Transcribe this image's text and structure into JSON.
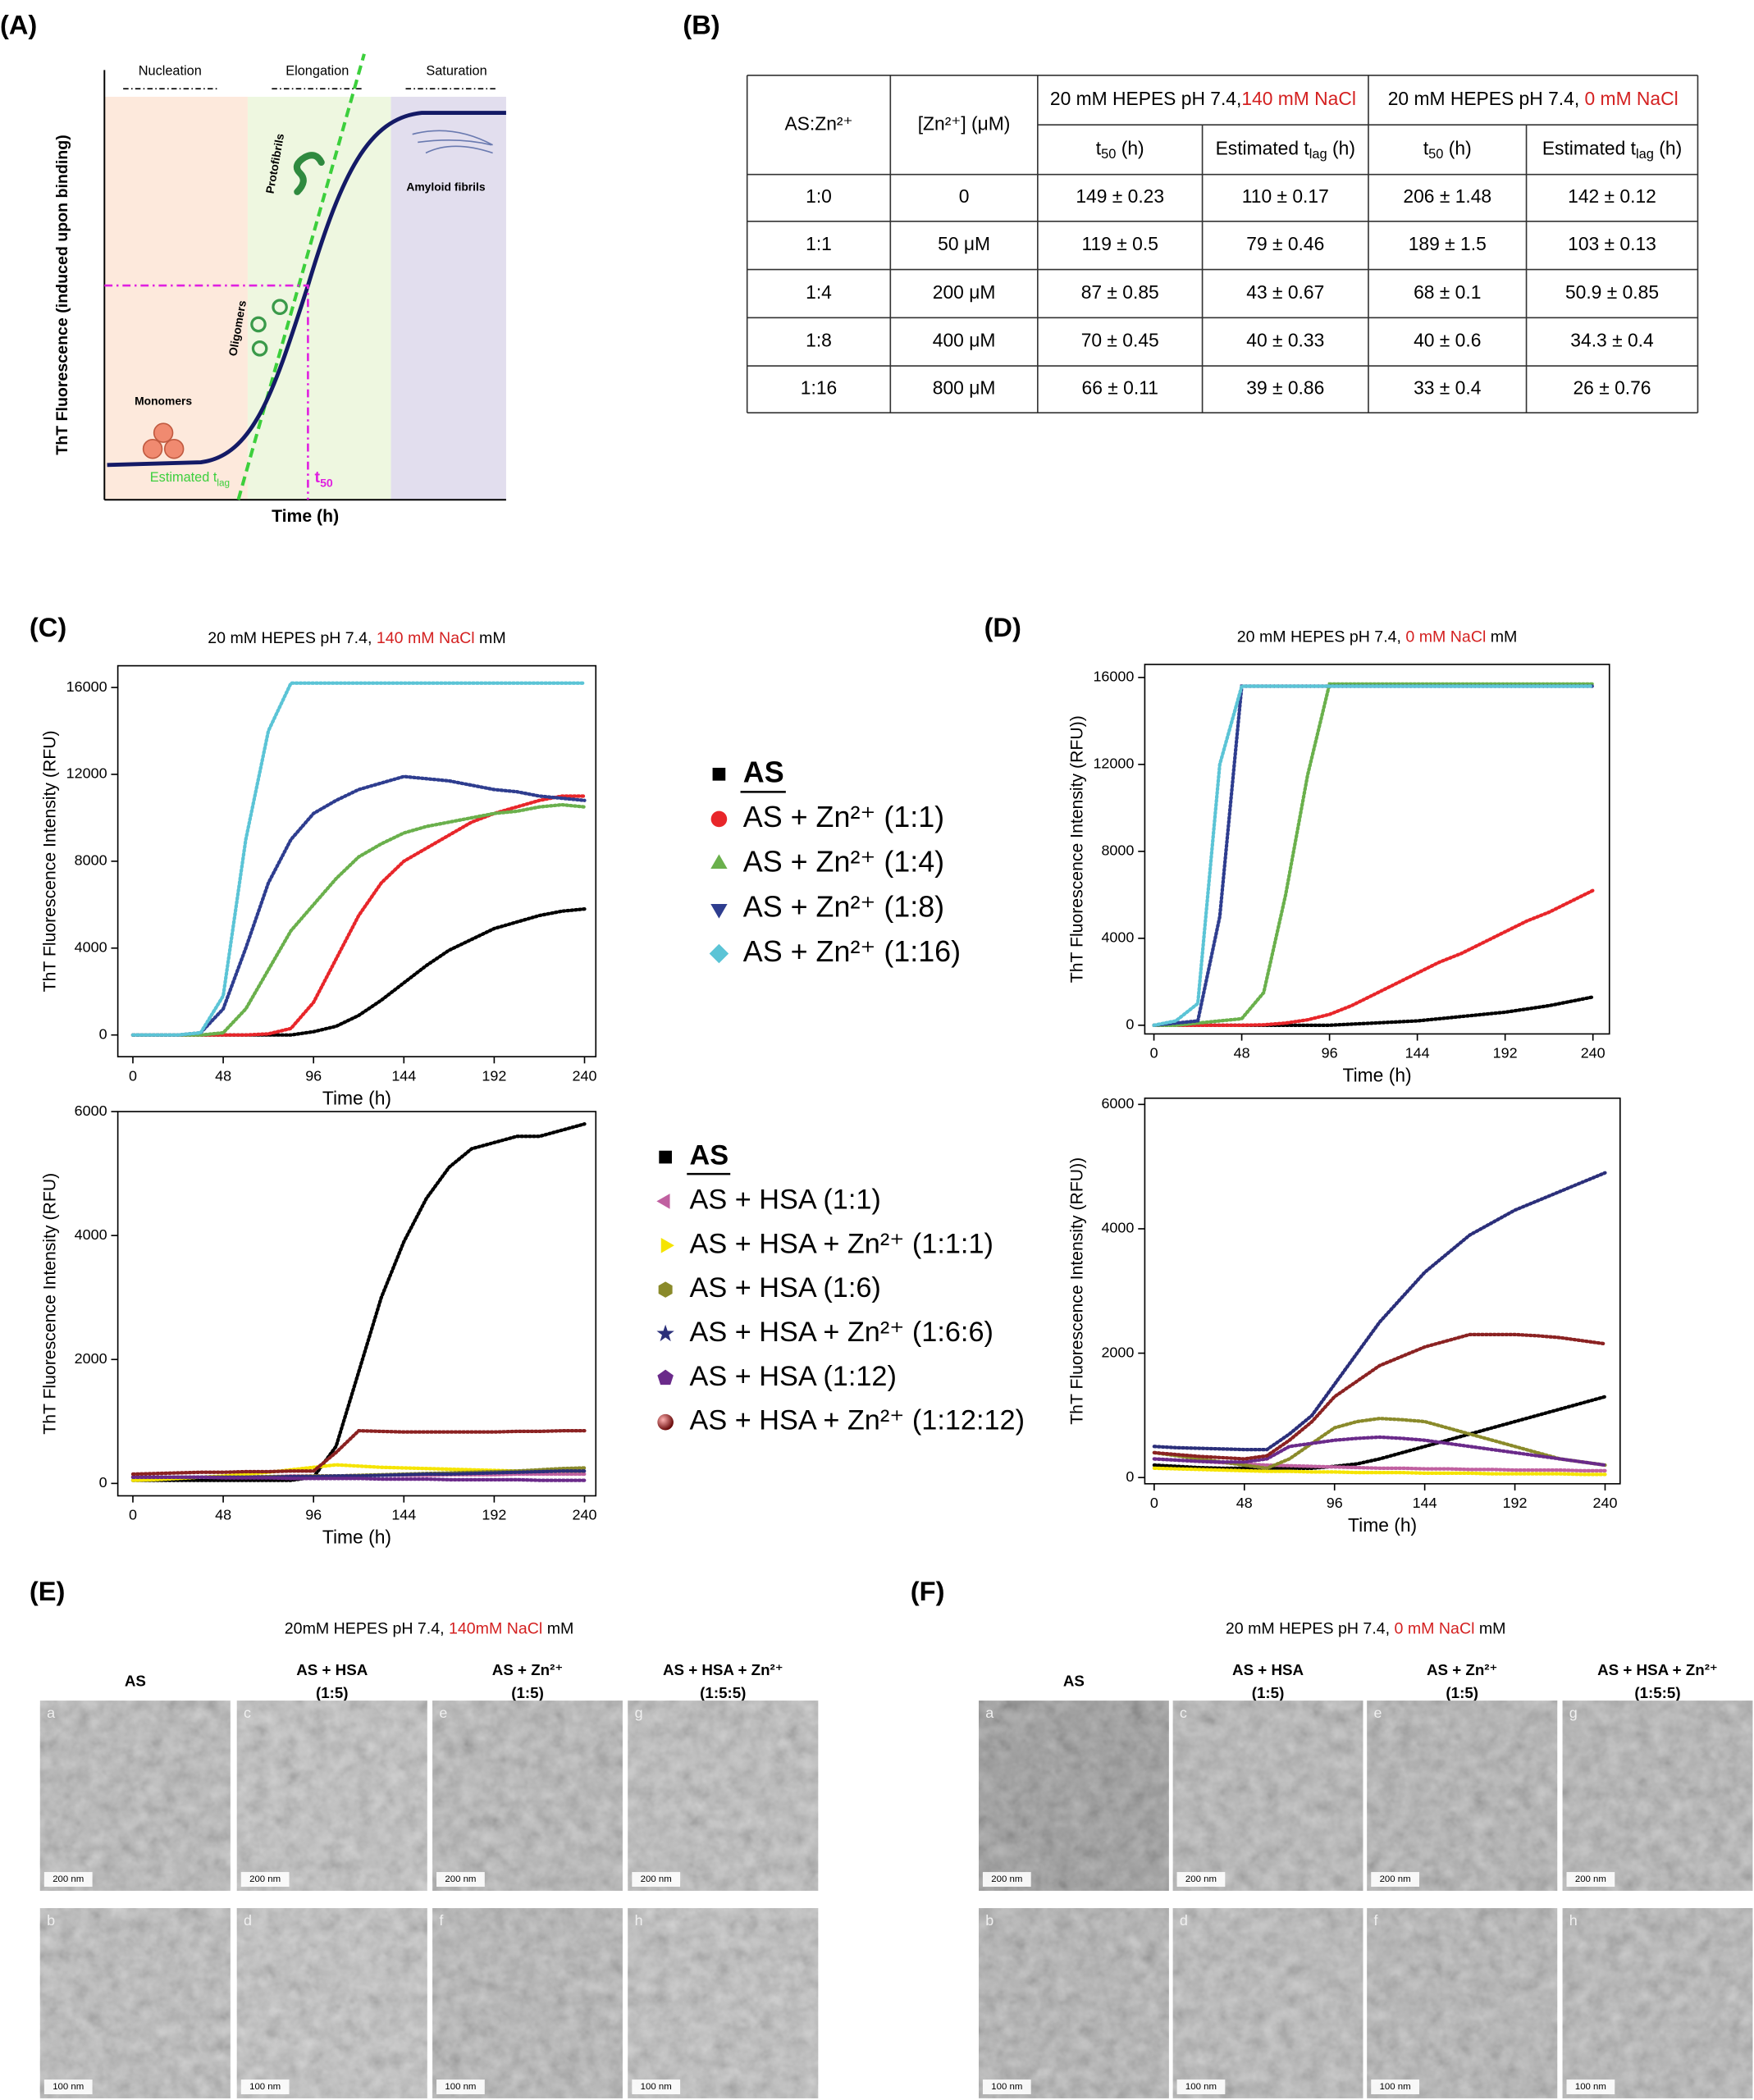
{
  "panel_labels": [
    "(A)",
    "(B)",
    "(C)",
    "(D)",
    "(E)",
    "(F)"
  ],
  "schematic": {
    "phases": [
      "Nucleation",
      "Elongation",
      "Saturation"
    ],
    "species": [
      "Monomers",
      "Oligomers",
      "Protofibrils",
      "Amyloid fibrils"
    ],
    "lag_label": {
      "base": "Estimated t",
      "sub": "lag"
    },
    "t50_label": {
      "base": "t",
      "sub": "50"
    },
    "x_label": "Time (h)",
    "y_label": "ThT Fluorescence (induced upon binding)"
  },
  "table": {
    "col_headers": [
      "AS:Zn²⁺",
      "[Zn²⁺] (μM)"
    ],
    "groups": [
      {
        "base": "20 mM HEPES pH 7.4,",
        "salt": "140 mM NaCl"
      },
      {
        "base": "20 mM HEPES pH 7.4, ",
        "salt": "0 mM NaCl"
      }
    ],
    "sub_headers": [
      {
        "base": "t",
        "sub": "50",
        "unit": " (h)"
      },
      {
        "base": "Estimated t",
        "sub": "lag",
        "unit": " (h)"
      }
    ],
    "rows": [
      [
        "1:0",
        "0",
        "149 ± 0.23",
        "110 ± 0.17",
        "206 ± 1.48",
        "142 ± 0.12"
      ],
      [
        "1:1",
        "50 μM",
        "119 ± 0.5",
        "79 ± 0.46",
        "189 ± 1.5",
        "103 ± 0.13"
      ],
      [
        "1:4",
        "200 μM",
        "87 ± 0.85",
        "43 ± 0.67",
        "68 ± 0.1",
        "50.9 ± 0.85"
      ],
      [
        "1:8",
        "400 μM",
        "70 ± 0.45",
        "40 ± 0.33",
        "40 ± 0.6",
        "34.3 ± 0.4"
      ],
      [
        "1:16",
        "800 μM",
        "66 ± 0.11",
        "39 ± 0.86",
        "33 ± 0.4",
        "26 ± 0.76"
      ]
    ]
  },
  "chart_data": [
    {
      "type": "line",
      "title": {
        "base": "20 mM HEPES pH 7.4, ",
        "salt": "140 mM NaCl",
        "tail": " mM"
      },
      "x_label": "Time (h)",
      "y_label": "ThT Fluorescence Intensity (RFU)",
      "x": [
        0,
        12,
        24,
        36,
        48,
        60,
        72,
        84,
        96,
        108,
        120,
        132,
        144,
        156,
        168,
        180,
        192,
        204,
        216,
        228,
        240
      ],
      "xlim": [
        -8,
        246
      ],
      "xticks": [
        0,
        48,
        96,
        144,
        192,
        240
      ],
      "ylim": [
        -1000,
        17000
      ],
      "yticks": [
        0,
        4000,
        8000,
        12000,
        16000
      ],
      "legend": "right",
      "series": [
        {
          "name": "AS",
          "color": "#000000",
          "marker": "square",
          "values": [
            0,
            0,
            0,
            0,
            0,
            0,
            0,
            0,
            150,
            400,
            900,
            1600,
            2400,
            3200,
            3900,
            4400,
            4900,
            5200,
            5500,
            5700,
            5800
          ]
        },
        {
          "name": "AS + Zn²⁺ (1:1)",
          "color": "#e8262a",
          "marker": "circle",
          "values": [
            0,
            0,
            0,
            0,
            0,
            0,
            50,
            300,
            1500,
            3500,
            5500,
            7000,
            8000,
            8600,
            9200,
            9800,
            10200,
            10500,
            10800,
            11000,
            11000
          ]
        },
        {
          "name": "AS + Zn²⁺ (1:4)",
          "color": "#6ab04c",
          "marker": "triangle",
          "values": [
            0,
            0,
            0,
            0,
            100,
            1200,
            3000,
            4800,
            6000,
            7200,
            8200,
            8800,
            9300,
            9600,
            9800,
            10000,
            10200,
            10300,
            10500,
            10600,
            10500
          ]
        },
        {
          "name": "AS + Zn²⁺ (1:8)",
          "color": "#2e3d8f",
          "marker": "triangle-down",
          "values": [
            0,
            0,
            0,
            100,
            1200,
            4000,
            7000,
            9000,
            10200,
            10800,
            11300,
            11600,
            11900,
            11800,
            11700,
            11500,
            11300,
            11200,
            11000,
            10900,
            10800
          ]
        },
        {
          "name": "AS + Zn²⁺ (1:16)",
          "color": "#5bc4d6",
          "marker": "diamond",
          "values": [
            0,
            0,
            0,
            100,
            1800,
            9000,
            14000,
            16200,
            16200,
            16200,
            16200,
            16200,
            16200,
            16200,
            16200,
            16200,
            16200,
            16200,
            16200,
            16200,
            16200
          ]
        }
      ]
    },
    {
      "type": "line",
      "x_label": "Time (h)",
      "y_label": "ThT Fluorescence Intensity (RFU)",
      "x": [
        0,
        12,
        24,
        36,
        48,
        60,
        72,
        84,
        96,
        108,
        120,
        132,
        144,
        156,
        168,
        180,
        192,
        204,
        216,
        228,
        240
      ],
      "xlim": [
        -8,
        246
      ],
      "xticks": [
        0,
        48,
        96,
        144,
        192,
        240
      ],
      "ylim": [
        -200,
        6000
      ],
      "yticks": [
        0,
        2000,
        4000,
        6000
      ],
      "legend": "right",
      "series": [
        {
          "name": "AS",
          "color": "#000000",
          "marker": "square",
          "values": [
            50,
            50,
            50,
            50,
            50,
            50,
            50,
            50,
            100,
            600,
            1800,
            3000,
            3900,
            4600,
            5100,
            5400,
            5500,
            5600,
            5600,
            5700,
            5800
          ]
        },
        {
          "name": "AS + HSA (1:1)",
          "color": "#c060a0",
          "marker": "triangle-left",
          "values": [
            100,
            100,
            100,
            100,
            100,
            110,
            110,
            120,
            120,
            120,
            130,
            130,
            130,
            130,
            140,
            140,
            140,
            150,
            150,
            150,
            150
          ]
        },
        {
          "name": "AS + HSA + Zn²⁺ (1:1:1)",
          "color": "#f5e400",
          "marker": "triangle-right",
          "values": [
            50,
            60,
            80,
            100,
            120,
            150,
            180,
            220,
            260,
            300,
            280,
            260,
            250,
            240,
            230,
            220,
            210,
            200,
            200,
            200,
            200
          ]
        },
        {
          "name": "AS + HSA (1:6)",
          "color": "#8a8a2a",
          "marker": "hexagon",
          "values": [
            100,
            100,
            100,
            100,
            100,
            100,
            110,
            110,
            120,
            120,
            130,
            140,
            150,
            160,
            170,
            180,
            190,
            200,
            220,
            240,
            250
          ]
        },
        {
          "name": "AS + HSA + Zn²⁺ (1:6:6)",
          "color": "#2b2f7a",
          "marker": "star",
          "values": [
            100,
            100,
            100,
            100,
            100,
            100,
            100,
            110,
            110,
            120,
            120,
            130,
            140,
            150,
            150,
            160,
            170,
            180,
            190,
            200,
            200
          ]
        },
        {
          "name": "AS + HSA (1:12)",
          "color": "#6a2a8a",
          "marker": "pentagon",
          "values": [
            100,
            100,
            100,
            100,
            90,
            90,
            90,
            80,
            80,
            80,
            80,
            70,
            70,
            70,
            60,
            60,
            60,
            60,
            50,
            50,
            50
          ]
        },
        {
          "name": "AS + HSA + Zn²⁺ (1:12:12)",
          "color": "#8b2222",
          "marker": "sphere",
          "values": [
            150,
            160,
            170,
            180,
            180,
            190,
            190,
            200,
            200,
            500,
            850,
            840,
            830,
            830,
            830,
            830,
            830,
            840,
            840,
            850,
            850
          ]
        }
      ]
    },
    {
      "type": "line",
      "title": {
        "base": "20 mM HEPES pH 7.4, ",
        "salt": "0 mM NaCl",
        "tail": " mM"
      },
      "x_label": "Time (h)",
      "y_label": "ThT Fluorescence Intensity (RFU))",
      "x": [
        0,
        12,
        24,
        36,
        48,
        60,
        72,
        84,
        96,
        108,
        120,
        132,
        144,
        156,
        168,
        180,
        192,
        204,
        216,
        228,
        240
      ],
      "xlim": [
        -5,
        249
      ],
      "xticks": [
        0,
        48,
        96,
        144,
        192,
        240
      ],
      "ylim": [
        -400,
        16600
      ],
      "yticks": [
        0,
        4000,
        8000,
        12000,
        16000
      ],
      "series": [
        {
          "color": "#000000",
          "values": [
            0,
            0,
            0,
            0,
            0,
            0,
            0,
            0,
            0,
            50,
            100,
            150,
            200,
            300,
            400,
            500,
            600,
            750,
            900,
            1100,
            1300
          ]
        },
        {
          "color": "#e8262a",
          "values": [
            0,
            0,
            0,
            0,
            0,
            20,
            100,
            250,
            500,
            900,
            1400,
            1900,
            2400,
            2900,
            3300,
            3800,
            4300,
            4800,
            5200,
            5700,
            6200
          ]
        },
        {
          "color": "#6ab04c",
          "values": [
            0,
            0,
            100,
            200,
            300,
            1500,
            6000,
            11500,
            15700,
            15700,
            15700,
            15700,
            15700,
            15700,
            15700,
            15700,
            15700,
            15700,
            15700,
            15700,
            15700
          ]
        },
        {
          "color": "#2e3d8f",
          "values": [
            0,
            100,
            200,
            5000,
            15600,
            15600,
            15600,
            15600,
            15600,
            15600,
            15600,
            15600,
            15600,
            15600,
            15600,
            15600,
            15600,
            15600,
            15600,
            15600,
            15600
          ]
        },
        {
          "color": "#5bc4d6",
          "values": [
            0,
            200,
            1000,
            12000,
            15600,
            15600,
            15600,
            15600,
            15600,
            15600,
            15600,
            15600,
            15600,
            15600,
            15600,
            15600,
            15600,
            15600,
            15600,
            15600,
            15600
          ]
        }
      ]
    },
    {
      "type": "line",
      "x_label": "Time (h)",
      "y_label": "ThT Fluorescence Intensity (RFU))",
      "x": [
        0,
        12,
        24,
        36,
        48,
        60,
        72,
        84,
        96,
        108,
        120,
        132,
        144,
        156,
        168,
        180,
        192,
        204,
        216,
        228,
        240
      ],
      "xlim": [
        -5,
        248
      ],
      "xticks": [
        0,
        48,
        96,
        144,
        192,
        240
      ],
      "ylim": [
        -100,
        6100
      ],
      "yticks": [
        0,
        2000,
        4000,
        6000
      ],
      "series": [
        {
          "color": "#000000",
          "values": [
            200,
            180,
            160,
            150,
            150,
            150,
            150,
            150,
            180,
            220,
            300,
            400,
            500,
            600,
            700,
            800,
            900,
            1000,
            1100,
            1200,
            1300
          ]
        },
        {
          "color": "#c060a0",
          "values": [
            300,
            280,
            260,
            240,
            220,
            200,
            190,
            180,
            170,
            160,
            150,
            150,
            140,
            140,
            130,
            130,
            120,
            120,
            120,
            110,
            110
          ]
        },
        {
          "color": "#f5e400",
          "values": [
            150,
            140,
            130,
            120,
            110,
            100,
            100,
            90,
            90,
            80,
            80,
            80,
            70,
            70,
            70,
            60,
            60,
            60,
            60,
            50,
            50
          ]
        },
        {
          "color": "#8a8a2a",
          "values": [
            400,
            350,
            300,
            250,
            200,
            150,
            300,
            550,
            800,
            900,
            950,
            930,
            900,
            800,
            700,
            600,
            500,
            400,
            300,
            250,
            200
          ]
        },
        {
          "color": "#2b2f7a",
          "values": [
            500,
            480,
            470,
            460,
            450,
            450,
            700,
            1000,
            1500,
            2000,
            2500,
            2900,
            3300,
            3600,
            3900,
            4100,
            4300,
            4450,
            4600,
            4750,
            4900
          ]
        },
        {
          "color": "#6a2a8a",
          "values": [
            300,
            280,
            260,
            250,
            250,
            300,
            500,
            550,
            600,
            630,
            650,
            630,
            600,
            550,
            500,
            450,
            400,
            350,
            300,
            250,
            200
          ]
        },
        {
          "color": "#8b2222",
          "values": [
            400,
            370,
            340,
            320,
            300,
            350,
            600,
            900,
            1300,
            1550,
            1800,
            1950,
            2100,
            2200,
            2300,
            2300,
            2300,
            2280,
            2250,
            2200,
            2150
          ]
        }
      ]
    }
  ],
  "tem": [
    {
      "title": {
        "base": "20mM HEPES pH 7.4, ",
        "salt": "140mM NaCl",
        "tail": " mM"
      },
      "columns": [
        [
          "AS"
        ],
        [
          "AS + HSA",
          "(1:5)"
        ],
        [
          "AS + Zn²⁺",
          "(1:5)"
        ],
        [
          "AS + HSA + Zn²⁺",
          "(1:5:5)"
        ]
      ],
      "letters": [
        [
          "a",
          "c",
          "e",
          "g"
        ],
        [
          "b",
          "d",
          "f",
          "h"
        ]
      ],
      "scale_bars": [
        "200 nm",
        "100 nm"
      ]
    },
    {
      "title": {
        "base": "20 mM HEPES pH 7.4, ",
        "salt": "0 mM NaCl",
        "tail": " mM"
      },
      "columns": [
        [
          "AS"
        ],
        [
          "AS + HSA",
          "(1:5)"
        ],
        [
          "AS + Zn²⁺",
          "(1:5)"
        ],
        [
          "AS + HSA + Zn²⁺",
          "(1:5:5)"
        ]
      ],
      "letters": [
        [
          "a",
          "c",
          "e",
          "g"
        ],
        [
          "b",
          "d",
          "f",
          "h"
        ]
      ],
      "scale_bars": [
        "200 nm",
        "100 nm"
      ]
    }
  ]
}
